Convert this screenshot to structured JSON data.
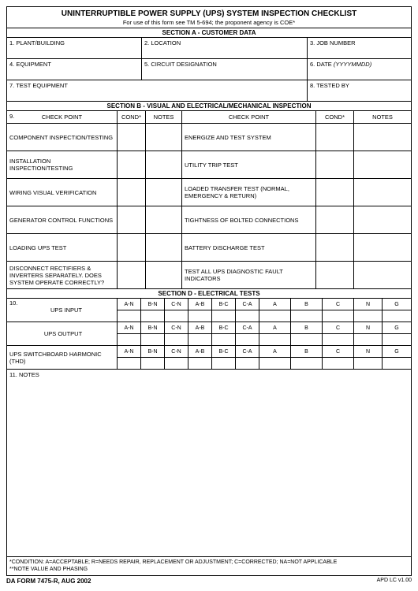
{
  "header": {
    "title": "UNINTERRUPTIBLE POWER SUPPLY (UPS) SYSTEM INSPECTION CHECKLIST",
    "subtitle": "For use of this form see TM 5-694; the proponent agency is COE*"
  },
  "sectionA": {
    "heading": "SECTION A - CUSTOMER DATA",
    "f1": "1.  PLANT/BUILDING",
    "f2": "2.  LOCATION",
    "f3": "3. JOB NUMBER",
    "f4": "4.  EQUIPMENT",
    "f5": "5.  CIRCUIT DESIGNATION",
    "f6": "6. DATE (YYYYMMDD)",
    "f6_lbl": "6. DATE ",
    "f6_ital": "(YYYYMMDD)",
    "f7": "7.  TEST EQUIPMENT",
    "f8": "8. TESTED BY"
  },
  "sectionB": {
    "heading": "SECTION B - VISUAL AND ELECTRICAL/MECHANICAL INSPECTION",
    "numlabel": "9.",
    "h_checkpoint": "CHECK POINT",
    "h_cond": "COND*",
    "h_notes": "NOTES",
    "rows": [
      {
        "l": "COMPONENT INSPECTION/TESTING",
        "r": "ENERGIZE AND TEST SYSTEM"
      },
      {
        "l": "INSTALLATION INSPECTION/TESTING",
        "r": "UTILITY TRIP TEST"
      },
      {
        "l": "WIRING VISUAL VERIFICATION",
        "r": "LOADED TRANSFER TEST (NORMAL, EMERGENCY & RETURN)"
      },
      {
        "l": "GENERATOR CONTROL FUNCTIONS",
        "r": "TIGHTNESS OF BOLTED CONNECTIONS"
      },
      {
        "l": "LOADING UPS TEST",
        "r": "BATTERY DISCHARGE TEST"
      },
      {
        "l": "DISCONNECT RECTIFIERS & INVERTERS SEPARATELY. DOES SYSTEM OPERATE CORRECTLY?",
        "r": "TEST ALL UPS DIAGNOSTIC FAULT INDICATORS"
      }
    ]
  },
  "sectionD": {
    "heading": "SECTION D - ELECTRICAL TESTS",
    "numlabel": "10.",
    "row_labels": [
      "UPS INPUT",
      "UPS OUTPUT",
      "UPS SWITCHBOARD HARMONIC (THD)"
    ],
    "cols": [
      "A-N",
      "B-N",
      "C-N",
      "A-B",
      "B-C",
      "C-A",
      "A",
      "B",
      "C",
      "N",
      "G"
    ]
  },
  "notes": {
    "label": "11.  NOTES"
  },
  "footnotes": {
    "l1": "*CONDITION: A=ACCEPTABLE; R=NEEDS REPAIR, REPLACEMENT OR ADJUSTMENT; C=CORRECTED; NA=NOT APPLICABLE",
    "l2": "**NOTE VALUE AND PHASING"
  },
  "footer": {
    "left": "DA FORM 7475-R, AUG 2002",
    "right": "APD LC v1.00"
  }
}
